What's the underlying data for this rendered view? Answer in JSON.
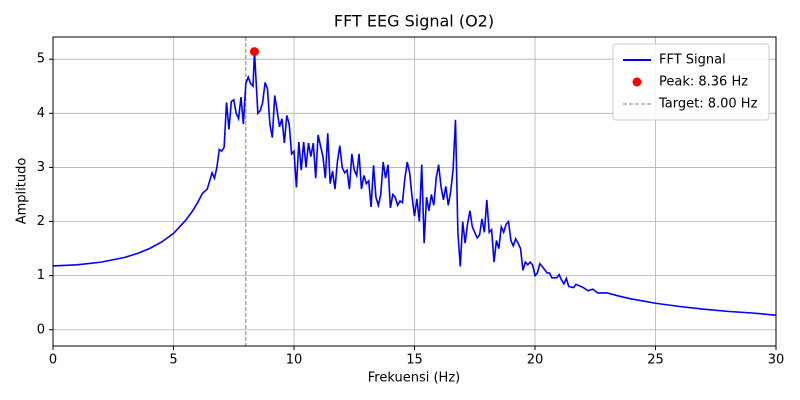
{
  "chart_data": {
    "type": "line",
    "title": "FFT EEG Signal (O2)",
    "x_label": "Frekuensi (Hz)",
    "y_label": "Amplitudo",
    "x": [
      0,
      1,
      2,
      3,
      3.5,
      4,
      4.5,
      5,
      5.5,
      5.8,
      6,
      6.2,
      6.4,
      6.6,
      6.7,
      6.8,
      6.9,
      7.0,
      7.1,
      7.2,
      7.3,
      7.4,
      7.5,
      7.6,
      7.7,
      7.8,
      7.9,
      8.0,
      8.1,
      8.2,
      8.3,
      8.36,
      8.5,
      8.6,
      8.7,
      8.8,
      8.9,
      9.0,
      9.1,
      9.2,
      9.3,
      9.4,
      9.5,
      9.6,
      9.7,
      9.8,
      9.9,
      10.0,
      10.1,
      10.2,
      10.3,
      10.4,
      10.5,
      10.6,
      10.7,
      10.8,
      10.9,
      11.0,
      11.1,
      11.2,
      11.3,
      11.4,
      11.5,
      11.6,
      11.7,
      11.8,
      11.9,
      12.0,
      12.1,
      12.2,
      12.3,
      12.4,
      12.5,
      12.6,
      12.7,
      12.8,
      12.9,
      13.0,
      13.1,
      13.2,
      13.3,
      13.4,
      13.5,
      13.6,
      13.7,
      13.8,
      13.9,
      14.0,
      14.1,
      14.2,
      14.3,
      14.4,
      14.5,
      14.6,
      14.7,
      14.8,
      14.9,
      15.0,
      15.1,
      15.2,
      15.3,
      15.4,
      15.5,
      15.6,
      15.7,
      15.8,
      15.9,
      16.0,
      16.1,
      16.2,
      16.3,
      16.4,
      16.5,
      16.6,
      16.7,
      16.8,
      16.9,
      17.0,
      17.1,
      17.2,
      17.3,
      17.4,
      17.5,
      17.6,
      17.7,
      17.8,
      17.9,
      18.0,
      18.1,
      18.2,
      18.3,
      18.4,
      18.5,
      18.6,
      18.7,
      18.8,
      18.9,
      19.0,
      19.1,
      19.2,
      19.3,
      19.4,
      19.5,
      19.6,
      19.7,
      19.8,
      19.9,
      20.0,
      20.1,
      20.2,
      20.3,
      20.5,
      20.6,
      20.7,
      20.9,
      21.0,
      21.1,
      21.2,
      21.3,
      21.4,
      21.6,
      21.7,
      22.0,
      22.2,
      22.4,
      22.6,
      23,
      23.5,
      24,
      24.5,
      25,
      26,
      27,
      28,
      29,
      30
    ],
    "series": [
      {
        "name": "FFT Signal",
        "color": "#0000ff",
        "values": [
          1.18,
          1.2,
          1.25,
          1.34,
          1.41,
          1.5,
          1.62,
          1.78,
          2.02,
          2.2,
          2.35,
          2.52,
          2.6,
          2.9,
          2.8,
          3.0,
          3.33,
          3.3,
          3.37,
          4.2,
          3.7,
          4.22,
          4.25,
          4.0,
          3.9,
          4.3,
          3.8,
          4.55,
          4.67,
          4.55,
          4.5,
          5.14,
          4.0,
          4.05,
          4.2,
          4.57,
          4.45,
          3.8,
          3.55,
          4.33,
          4.05,
          3.75,
          3.9,
          3.45,
          3.96,
          3.8,
          3.25,
          3.3,
          2.63,
          3.47,
          2.95,
          3.47,
          3.0,
          3.45,
          3.2,
          3.45,
          2.8,
          3.6,
          3.4,
          3.2,
          2.8,
          3.63,
          2.7,
          2.93,
          2.6,
          3.1,
          3.4,
          3.0,
          2.9,
          2.95,
          2.6,
          3.25,
          2.95,
          2.85,
          3.25,
          2.6,
          2.85,
          2.7,
          2.75,
          2.27,
          3.04,
          2.45,
          2.3,
          2.5,
          3.1,
          2.8,
          3.05,
          2.25,
          2.5,
          2.45,
          2.3,
          2.38,
          2.35,
          2.8,
          3.1,
          2.9,
          2.45,
          2.1,
          2.42,
          2.0,
          3.05,
          1.6,
          2.45,
          2.2,
          2.5,
          2.3,
          2.8,
          3.05,
          2.65,
          2.4,
          2.65,
          2.3,
          2.55,
          2.95,
          3.88,
          1.8,
          1.17,
          2.0,
          1.6,
          1.95,
          2.2,
          1.9,
          1.8,
          1.7,
          1.75,
          2.05,
          1.8,
          2.4,
          1.8,
          1.85,
          1.25,
          1.65,
          1.5,
          1.9,
          1.8,
          1.95,
          2.0,
          1.65,
          1.55,
          1.68,
          1.6,
          1.5,
          1.1,
          1.25,
          1.2,
          1.25,
          1.2,
          1.0,
          1.05,
          1.22,
          1.17,
          1.05,
          1.05,
          0.96,
          0.96,
          1.02,
          0.92,
          0.85,
          0.95,
          0.8,
          0.78,
          0.84,
          0.78,
          0.72,
          0.75,
          0.68,
          0.68,
          0.62,
          0.57,
          0.53,
          0.49,
          0.43,
          0.38,
          0.34,
          0.31,
          0.27
        ]
      }
    ],
    "peak": {
      "name": "Peak: 8.36 Hz",
      "x": 8.36,
      "y": 5.14,
      "color": "#ff0000"
    },
    "target": {
      "name": "Target: 8.00 Hz",
      "x": 8.0,
      "color": "#808080"
    },
    "xlim": [
      0,
      30
    ],
    "xticks": [
      0,
      5,
      10,
      15,
      20,
      25,
      30
    ],
    "ylim": [
      -0.3,
      5.41
    ],
    "yticks": [
      0,
      1,
      2,
      3,
      4,
      5
    ],
    "grid": true,
    "legend": "upper right"
  }
}
